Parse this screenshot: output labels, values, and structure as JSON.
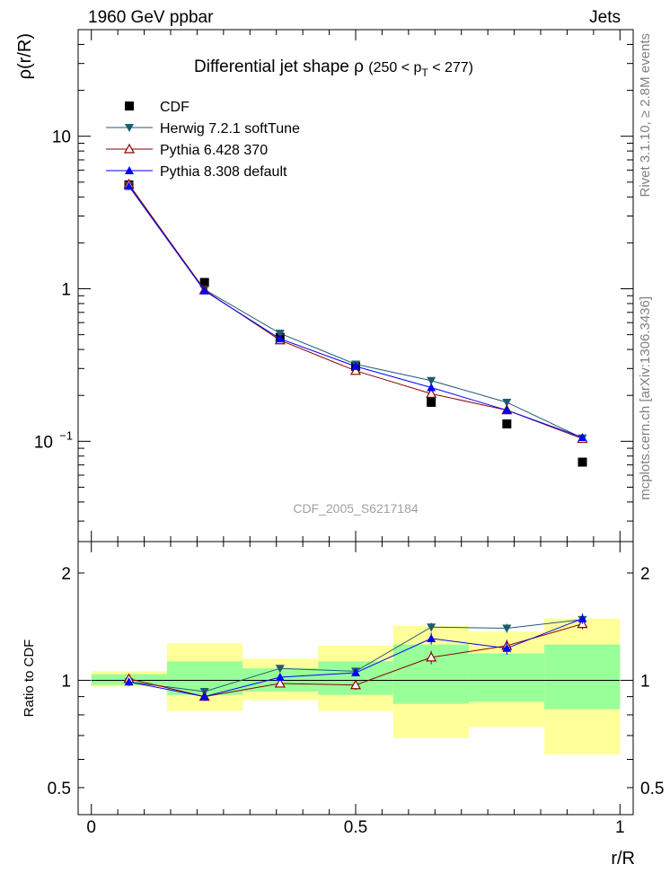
{
  "header": {
    "left": "1960 GeV ppbar",
    "right": "Jets"
  },
  "side_labels": {
    "rivet": "Rivet 3.1.10, ≥ 2.8M events",
    "mcplots": "mcplots.cern.ch [arXiv:1306.3436]"
  },
  "chart_data": [
    {
      "panel": "main",
      "type": "scatter",
      "title": "Differential jet shape  ρ (250 < p_T < 277)",
      "title_parts": {
        "main": "Differential jet shape",
        "rho": "ρ",
        "range_open": "(250 < p",
        "range_sub": "T",
        "range_close": " < 277)"
      },
      "ylabel": "ρ(r/R)",
      "yscale": "log",
      "ylim": [
        0.022,
        50
      ],
      "xlim": [
        -0.025,
        1.025
      ],
      "y_ticks": [
        {
          "value": 10,
          "label": "10"
        },
        {
          "value": 1,
          "label": "1"
        },
        {
          "value": 0.1,
          "label": "10",
          "exp": "−1"
        }
      ],
      "watermark": "CDF_2005_S6217184",
      "legend_position": "top-left",
      "series": [
        {
          "name": "CDF",
          "color": "#000000",
          "marker": "square",
          "x": [
            0.071,
            0.214,
            0.357,
            0.5,
            0.643,
            0.786,
            0.929
          ],
          "y": [
            4.8,
            1.1,
            0.48,
            0.31,
            0.18,
            0.13,
            0.073
          ]
        },
        {
          "name": "Herwig 7.2.1 softTune",
          "color": "#1f5b6e",
          "marker": "triangle-down",
          "x": [
            0.071,
            0.214,
            0.357,
            0.5,
            0.643,
            0.786,
            0.929
          ],
          "y": [
            4.75,
            0.99,
            0.51,
            0.32,
            0.25,
            0.18,
            0.105
          ]
        },
        {
          "name": "Pythia 6.428 370",
          "color": "#8b0000",
          "marker": "triangle-up-open",
          "x": [
            0.071,
            0.214,
            0.357,
            0.5,
            0.643,
            0.786,
            0.929
          ],
          "y": [
            4.85,
            0.98,
            0.46,
            0.29,
            0.205,
            0.16,
            0.104
          ]
        },
        {
          "name": "Pythia 8.308 default",
          "color": "#0000ff",
          "marker": "triangle-up",
          "x": [
            0.071,
            0.214,
            0.357,
            0.5,
            0.643,
            0.786,
            0.929
          ],
          "y": [
            4.7,
            0.97,
            0.47,
            0.31,
            0.225,
            0.16,
            0.106
          ]
        }
      ]
    },
    {
      "panel": "ratio",
      "type": "scatter",
      "ylabel": "Ratio to CDF",
      "xlabel": "r/R",
      "yscale": "log",
      "ylim": [
        0.42,
        2.45
      ],
      "xlim": [
        -0.025,
        1.025
      ],
      "x_ticks": [
        {
          "value": 0,
          "label": "0"
        },
        {
          "value": 0.5,
          "label": "0.5"
        },
        {
          "value": 1,
          "label": "1"
        }
      ],
      "y_ticks": [
        {
          "value": 2,
          "label": "2"
        },
        {
          "value": 1,
          "label": "1"
        },
        {
          "value": 0.5,
          "label": "0.5"
        }
      ],
      "bands": {
        "bins": [
          [
            0,
            0.143
          ],
          [
            0.143,
            0.286
          ],
          [
            0.286,
            0.429
          ],
          [
            0.429,
            0.571
          ],
          [
            0.571,
            0.714
          ],
          [
            0.714,
            0.857
          ],
          [
            0.857,
            1.0
          ]
        ],
        "yellow": [
          [
            0.96,
            1.06
          ],
          [
            0.82,
            1.27
          ],
          [
            0.88,
            1.15
          ],
          [
            0.82,
            1.25
          ],
          [
            0.69,
            1.42
          ],
          [
            0.74,
            1.37
          ],
          [
            0.62,
            1.49
          ]
        ],
        "green": [
          [
            0.97,
            1.04
          ],
          [
            0.91,
            1.13
          ],
          [
            0.93,
            1.08
          ],
          [
            0.91,
            1.13
          ],
          [
            0.86,
            1.26
          ],
          [
            0.87,
            1.19
          ],
          [
            0.83,
            1.26
          ]
        ],
        "yellow_color": "#ffff99",
        "green_color": "#99ff99"
      },
      "series": [
        {
          "name": "Herwig 7.2.1 softTune",
          "color": "#1f5b6e",
          "marker": "triangle-down",
          "x": [
            0.071,
            0.214,
            0.357,
            0.5,
            0.643,
            0.786,
            0.929
          ],
          "y": [
            0.99,
            0.93,
            1.08,
            1.06,
            1.41,
            1.4,
            1.48
          ],
          "err": [
            0.02,
            0.02,
            0.02,
            0.02,
            0.04,
            0.04,
            0.05
          ]
        },
        {
          "name": "Pythia 6.428 370",
          "color": "#8b0000",
          "marker": "triangle-up-open",
          "x": [
            0.071,
            0.214,
            0.357,
            0.5,
            0.643,
            0.786,
            0.929
          ],
          "y": [
            1.01,
            0.9,
            0.98,
            0.97,
            1.16,
            1.25,
            1.44
          ],
          "err": [
            0.02,
            0.02,
            0.02,
            0.03,
            0.05,
            0.05,
            0.05
          ]
        },
        {
          "name": "Pythia 8.308 default",
          "color": "#0000ff",
          "marker": "triangle-up",
          "x": [
            0.071,
            0.214,
            0.357,
            0.5,
            0.643,
            0.786,
            0.929
          ],
          "y": [
            0.99,
            0.9,
            1.02,
            1.05,
            1.31,
            1.23,
            1.49
          ],
          "err": [
            0.02,
            0.02,
            0.02,
            0.02,
            0.05,
            0.05,
            0.05
          ]
        }
      ]
    }
  ]
}
